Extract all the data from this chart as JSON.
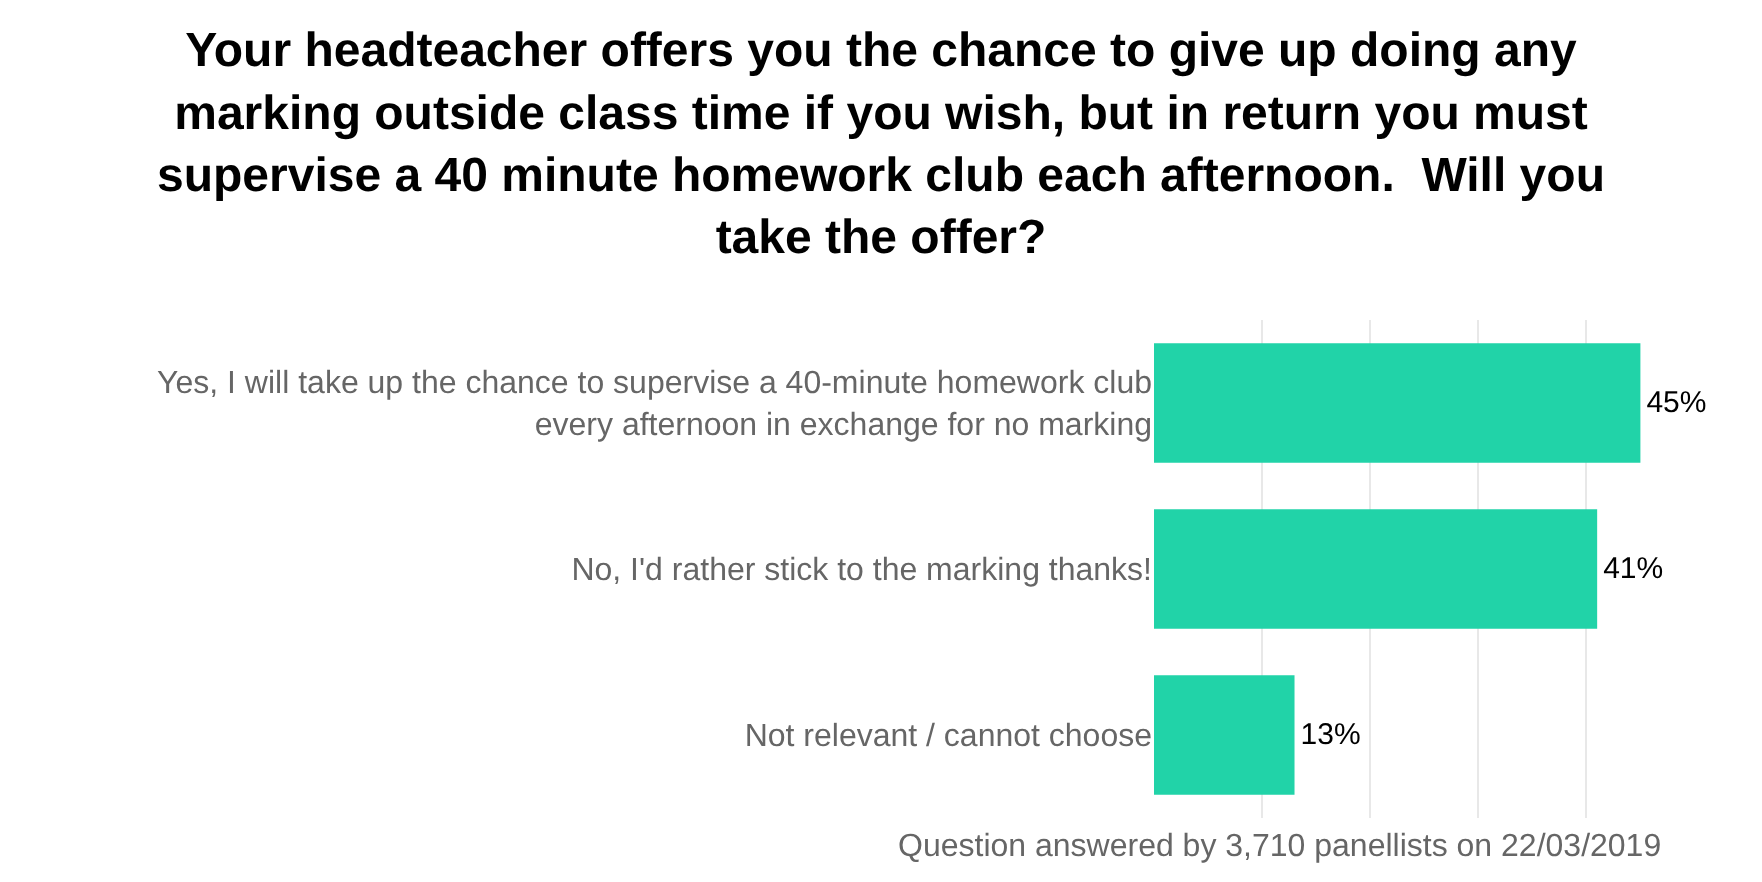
{
  "chart_data": {
    "type": "bar",
    "orientation": "horizontal",
    "title": "Your headteacher offers you the chance to give up doing any marking outside class time if you wish, but in return you must supervise a 40 minute homework club each afternoon.  Will you take the offer?",
    "categories": [
      "Yes, I will take up the chance to supervise a 40-minute homework club every afternoon in exchange for no marking",
      "No, I'd rather stick to the marking thanks!",
      "Not relevant / cannot choose"
    ],
    "values": [
      45,
      41,
      13
    ],
    "value_labels": [
      "45%",
      "41%",
      "13%"
    ],
    "color": "#21d3a8",
    "grid": "x",
    "tick_labels": "y",
    "annotations": [
      "Question answered by 3,710 panellists on 22/03/2019"
    ]
  }
}
